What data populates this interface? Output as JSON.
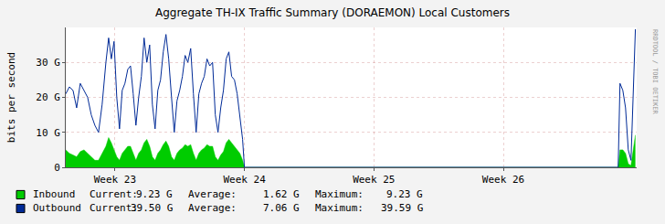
{
  "chart_data": {
    "type": "line",
    "title": "Aggregate TH-IX Traffic Summary (DORAEMON) Local Customers",
    "y_label": "bits per second",
    "side_text": "RRDTOOL / TOBI OETIKER",
    "x": [
      22.62,
      22.648,
      22.676,
      22.704,
      22.732,
      22.761,
      22.789,
      22.817,
      22.845,
      22.873,
      22.901,
      22.93,
      22.951,
      22.972,
      22.993,
      23.014,
      23.035,
      23.056,
      23.077,
      23.099,
      23.12,
      23.141,
      23.162,
      23.183,
      23.204,
      23.225,
      23.246,
      23.268,
      23.289,
      23.31,
      23.331,
      23.352,
      23.373,
      23.394,
      23.415,
      23.437,
      23.458,
      23.479,
      23.5,
      23.521,
      23.542,
      23.563,
      23.585,
      23.606,
      23.627,
      23.648,
      23.669,
      23.69,
      23.711,
      23.732,
      23.754,
      23.775,
      23.796,
      23.817,
      23.838,
      23.859,
      23.88,
      23.901,
      23.923,
      23.944,
      23.965,
      23.986,
      24.0,
      26.873,
      26.887,
      26.901,
      26.923,
      26.944,
      26.965,
      26.986,
      27.007,
      27.02
    ],
    "series": [
      {
        "name": "Inbound",
        "type": "area",
        "color": "#00cc00",
        "values": [
          5,
          4,
          3.5,
          3,
          4.5,
          5,
          4,
          3,
          2,
          2,
          4,
          6,
          8.5,
          7,
          5,
          3,
          2,
          4,
          5,
          6,
          6,
          4,
          2,
          4,
          5,
          7,
          8,
          6,
          3,
          2,
          4,
          5,
          6.5,
          7.5,
          6,
          3,
          2,
          4,
          5,
          5.5,
          6.5,
          6,
          6.5,
          4,
          2,
          4,
          5,
          5.5,
          6.5,
          6,
          6,
          3,
          2,
          3.5,
          4.5,
          7,
          8,
          7,
          6,
          5,
          4,
          2,
          0,
          0,
          0,
          5,
          5,
          4,
          1,
          0.5,
          6,
          9.23
        ],
        "stats": [
          {
            "value": 9.23,
            "label": "9.23 G"
          },
          {
            "value": 1.62,
            "label": "1.62 G"
          },
          {
            "value": 9.23,
            "label": "9.23 G"
          }
        ]
      },
      {
        "name": "Outbound",
        "type": "line",
        "color": "#002a97",
        "values": [
          21,
          23,
          22,
          17,
          24,
          22,
          20,
          15,
          12,
          10,
          18,
          30,
          37,
          31,
          36,
          20,
          11,
          22,
          24,
          28,
          29,
          21,
          12,
          20,
          26,
          37,
          30,
          35,
          18,
          11,
          22,
          25,
          33,
          38,
          31,
          20,
          10,
          19,
          22,
          26,
          32,
          30,
          34,
          21,
          10,
          21,
          24,
          26,
          31,
          29,
          30,
          15,
          10,
          17,
          22,
          31,
          33,
          26,
          25,
          21,
          15,
          8,
          0,
          0,
          0,
          24,
          22,
          17,
          5,
          2,
          25,
          39.5
        ],
        "stats": [
          {
            "value": 39.5,
            "label": "39.50 G"
          },
          {
            "value": 7.06,
            "label": "7.06 G"
          },
          {
            "value": 39.59,
            "label": "39.59 G"
          }
        ]
      }
    ],
    "stats_labels": [
      "Current:",
      "Average:",
      "Maximum:"
    ],
    "xlim": [
      22.62,
      27.03
    ],
    "xticks": [
      {
        "value": 23,
        "label": "Week 23"
      },
      {
        "value": 24,
        "label": "Week 24"
      },
      {
        "value": 25,
        "label": "Week 25"
      },
      {
        "value": 26,
        "label": "Week 26"
      }
    ],
    "ylim": [
      0,
      40
    ],
    "yticks": [
      0,
      {
        "value": 10,
        "label": "10 G"
      },
      {
        "value": 20,
        "label": "20 G"
      },
      {
        "value": 30,
        "label": "30 G"
      }
    ],
    "grid": true
  }
}
